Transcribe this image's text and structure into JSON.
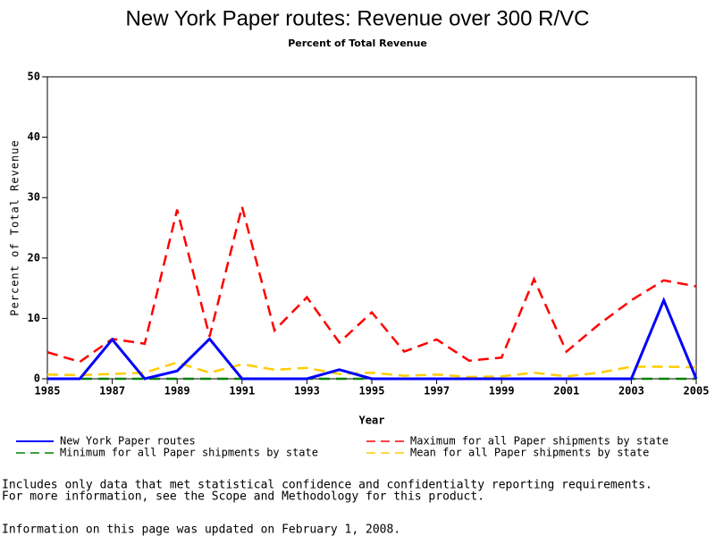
{
  "chart_data": {
    "type": "line",
    "title": "New York Paper routes: Revenue over 300 R/VC",
    "subtitle": "Percent of Total Revenue",
    "x_label": "Year",
    "y_label": "Percent of Total Revenue",
    "x": [
      1985,
      1986,
      1987,
      1988,
      1989,
      1990,
      1991,
      1992,
      1993,
      1994,
      1995,
      1996,
      1997,
      1998,
      1999,
      2000,
      2001,
      2002,
      2003,
      2004,
      2005
    ],
    "xlim": [
      1985,
      2005
    ],
    "xticks": [
      1985,
      1987,
      1989,
      1991,
      1993,
      1995,
      1997,
      1999,
      2001,
      2003,
      2005
    ],
    "ylim": [
      0,
      50
    ],
    "yticks": [
      0,
      10,
      20,
      30,
      40,
      50
    ],
    "series": [
      {
        "name": "New York Paper routes",
        "color": "#0000ff",
        "dashed": false,
        "values": [
          0,
          0,
          6.5,
          0,
          1.3,
          6.6,
          0,
          0,
          0,
          1.5,
          0,
          0,
          0,
          0,
          0,
          0,
          0,
          0,
          0,
          13,
          0
        ]
      },
      {
        "name": "Maximum for all Paper shipments by state",
        "color": "#ff0000",
        "dashed": true,
        "values": [
          4.4,
          2.8,
          6.6,
          5.8,
          28,
          7,
          28.5,
          8,
          13.5,
          6,
          11,
          4.5,
          6.5,
          3,
          3.5,
          16.5,
          4.5,
          9,
          13,
          16.3,
          15.3
        ]
      },
      {
        "name": "Minimum for all Paper shipments by state",
        "color": "#008000",
        "dashed": true,
        "values": [
          0,
          0,
          0,
          0,
          0,
          0,
          0,
          0,
          0,
          0,
          0,
          0,
          0,
          0,
          0,
          0,
          0,
          0,
          0,
          0,
          0
        ]
      },
      {
        "name": "Mean for all Paper shipments by state",
        "color": "#ffcc00",
        "dashed": true,
        "values": [
          0.7,
          0.6,
          0.8,
          1,
          2.7,
          1,
          2.4,
          1.5,
          1.8,
          0.8,
          1,
          0.5,
          0.7,
          0.3,
          0.4,
          1,
          0.4,
          1,
          2,
          2,
          1.9
        ]
      }
    ],
    "notes": [
      "Includes only data that met statistical confidence and confidentialty reporting requirements.",
      "For more information, see the Scope and Methodology for this product.",
      "Information on this page was updated on February 1, 2008."
    ]
  }
}
